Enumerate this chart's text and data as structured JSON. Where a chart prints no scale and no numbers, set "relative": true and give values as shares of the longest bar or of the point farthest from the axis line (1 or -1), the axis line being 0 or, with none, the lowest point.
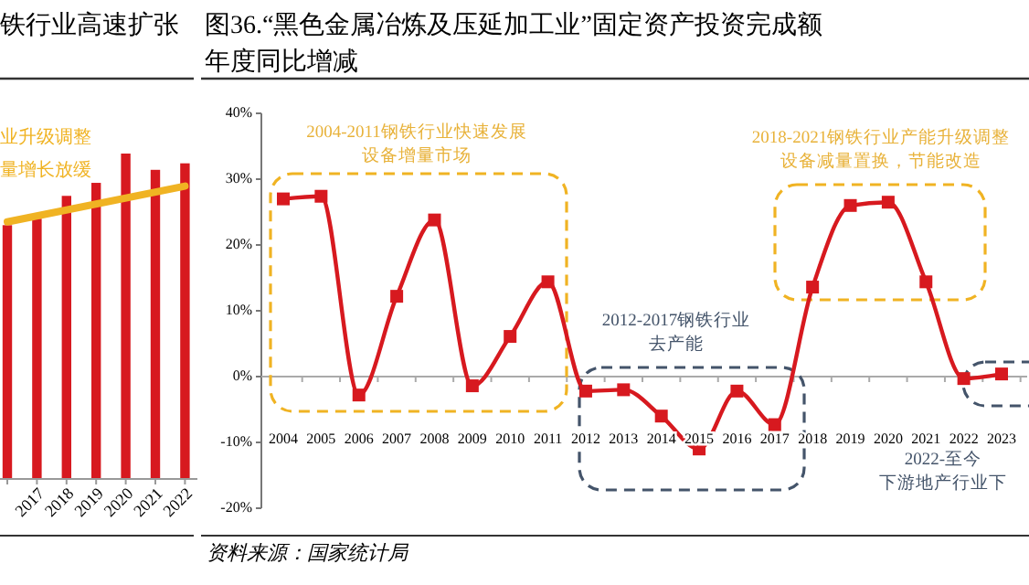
{
  "chart_data": [
    {
      "type": "bar",
      "title": "铁行业高速扩张",
      "relative": true,
      "categories": [
        null,
        "2017",
        "2018",
        "2019",
        "2020",
        "2021",
        "2022"
      ],
      "series": [
        {
          "type": "bar",
          "color": "#d7191f",
          "values": [
            0.78,
            0.8,
            0.87,
            0.91,
            1,
            0.95,
            0.97
          ]
        },
        {
          "type": "line",
          "color": "#f0b323",
          "values": [
            0.79,
            null,
            null,
            null,
            null,
            null,
            0.9
          ]
        }
      ],
      "annotations": [
        "业升级调整",
        "量增长放缓"
      ]
    },
    {
      "type": "line",
      "title": "图36.“黑色金属冶炼及压延加工业”固定资产投资完成额年度同比增减",
      "categories": [
        "2004",
        "2005",
        "2006",
        "2007",
        "2008",
        "2009",
        "2010",
        "2011",
        "2012",
        "2013",
        "2014",
        "2015",
        "2016",
        "2017",
        "2018",
        "2019",
        "2020",
        "2021",
        "2022",
        "2023"
      ],
      "series": [
        {
          "color": "#d7191f",
          "values": [
            27,
            27.4,
            -2.8,
            12.2,
            23.8,
            -1.4,
            6.1,
            14.4,
            -2.2,
            -2,
            -6,
            -11,
            -2.2,
            -7.3,
            13.6,
            26,
            26.5,
            14.4,
            -0.3,
            0.4
          ]
        }
      ],
      "ylim": [
        -20,
        40
      ],
      "yticks": [
        {
          "value": -20,
          "label": "-20%"
        },
        {
          "value": -10,
          "label": "-10%"
        },
        {
          "value": 0,
          "label": "0%"
        },
        {
          "value": 10,
          "label": "10%"
        },
        {
          "value": 20,
          "label": "20%"
        },
        {
          "value": 30,
          "label": "30%"
        },
        {
          "value": 40,
          "label": "40%"
        }
      ],
      "marker": "square",
      "line_style": "solid",
      "annotations": [
        "2004-2011钢铁行业快速发展设备增量市场",
        "2012-2017钢铁行业去产能",
        "2018-2021钢铁行业产能升级调整设备减量置换，节能改造",
        "2022-至今下游地产行业下",
        "资料来源：国家统计局"
      ]
    }
  ]
}
